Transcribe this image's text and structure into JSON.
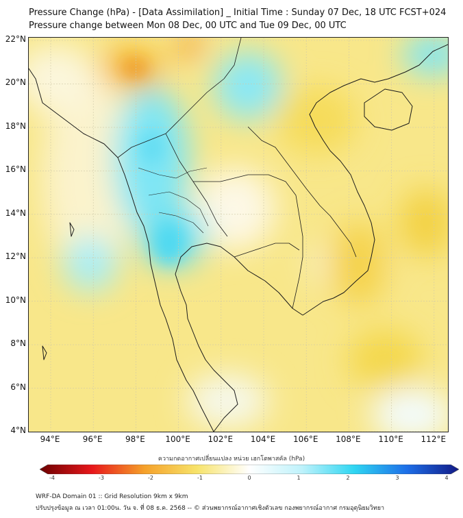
{
  "titles": {
    "line1": "Pressure Change (hPa) - [Data Assimilation] _ Initial Time : Sunday 07 Dec, 18 UTC FCST+024",
    "line2": "Pressure change between Mon 08 Dec, 00 UTC and Tue 09 Dec, 00 UTC"
  },
  "axes": {
    "lat_labels": [
      "22°N",
      "20°N",
      "18°N",
      "16°N",
      "14°N",
      "12°N",
      "10°N",
      "8°N",
      "6°N",
      "4°N"
    ],
    "lon_labels": [
      "94°E",
      "96°E",
      "98°E",
      "100°E",
      "102°E",
      "104°E",
      "106°E",
      "108°E",
      "110°E",
      "112°E"
    ]
  },
  "colorbar": {
    "title": "ความกดอากาศเปลี่ยนแปลง หน่วย เฮกโตพาสคัล (hPa)",
    "ticks": [
      "-4",
      "-3",
      "-2",
      "-1",
      "0",
      "1",
      "2",
      "3",
      "4"
    ],
    "range": [
      -4,
      4
    ],
    "colors": {
      "neg_strong": "#6b0000",
      "neg": "#e8171b",
      "neg_mid": "#f5a12a",
      "neg_weak": "#f7e36a",
      "zero": "#ffffff",
      "pos_weak": "#bff2fb",
      "pos": "#2fd6f2",
      "pos_mid": "#1d6fe8",
      "pos_strong": "#121a86"
    }
  },
  "map": {
    "background_color": "#f8e78a",
    "coastline_color": "#1a1a1a",
    "grid": true,
    "lat_range": [
      4,
      22
    ],
    "lon_range": [
      93,
      112.5
    ]
  },
  "footer": {
    "line1": "WRF-DA Domain 01 :: Grid Resolution 9km x 9km",
    "line2": "ปรับปรุงข้อมูล ณ เวลา 01:00น. วัน จ. ที่ 08 ธ.ค. 2568 -- © ส่วนพยากรณ์อากาศเชิงตัวเลข กองพยากรณ์อากาศ กรมอุตุนิยมวิทยา"
  }
}
